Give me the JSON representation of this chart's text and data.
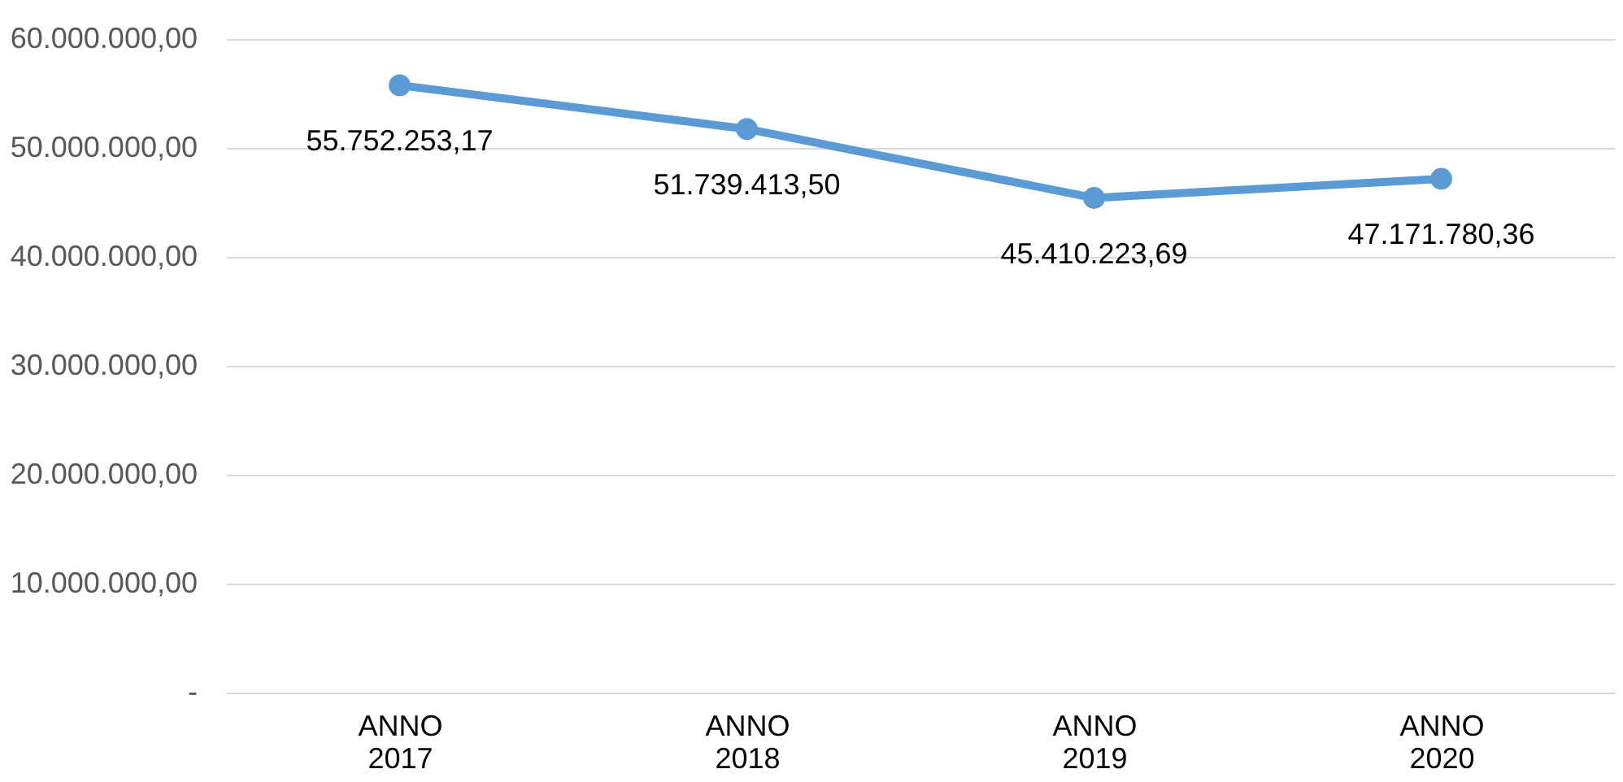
{
  "chart_data": {
    "type": "line",
    "categories": [
      "ANNO 2017",
      "ANNO 2018",
      "ANNO 2019",
      "ANNO 2020"
    ],
    "series": [
      {
        "color": "#5b9bd5",
        "values": [
          55752253.17,
          51739413.5,
          45410223.69,
          47171780.36
        ],
        "value_labels": [
          "55.752.253,17",
          "51.739.413,50",
          "45.410.223,69",
          "47.171.780,36"
        ]
      }
    ],
    "ylim": [
      0,
      60000000
    ],
    "yticks": [
      {
        "value": 0,
        "label": "-"
      },
      {
        "value": 10000000,
        "label": "10.000.000,00"
      },
      {
        "value": 20000000,
        "label": "20.000.000,00"
      },
      {
        "value": 30000000,
        "label": "30.000.000,00"
      },
      {
        "value": 40000000,
        "label": "40.000.000,00"
      },
      {
        "value": 50000000,
        "label": "50.000.000,00"
      },
      {
        "value": 60000000,
        "label": "60.000.000,00"
      }
    ],
    "grid": "y",
    "marker": "circle",
    "line_style": "solid",
    "legend": false
  }
}
